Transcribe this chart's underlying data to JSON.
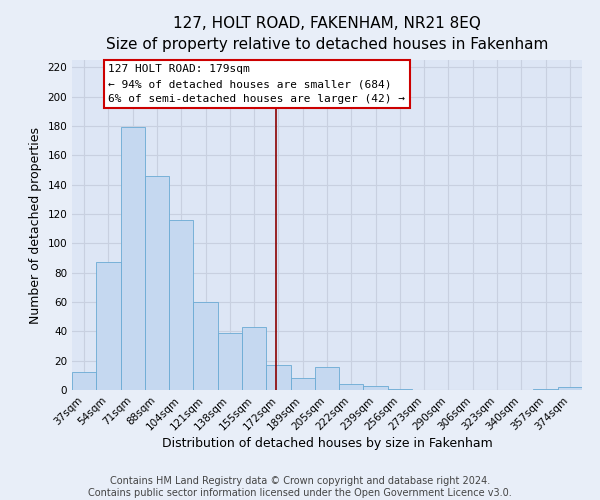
{
  "title": "127, HOLT ROAD, FAKENHAM, NR21 8EQ",
  "subtitle": "Size of property relative to detached houses in Fakenham",
  "xlabel": "Distribution of detached houses by size in Fakenham",
  "ylabel": "Number of detached properties",
  "bar_labels": [
    "37sqm",
    "54sqm",
    "71sqm",
    "88sqm",
    "104sqm",
    "121sqm",
    "138sqm",
    "155sqm",
    "172sqm",
    "189sqm",
    "205sqm",
    "222sqm",
    "239sqm",
    "256sqm",
    "273sqm",
    "290sqm",
    "306sqm",
    "323sqm",
    "340sqm",
    "357sqm",
    "374sqm"
  ],
  "bar_heights": [
    12,
    87,
    179,
    146,
    116,
    60,
    39,
    43,
    17,
    8,
    16,
    4,
    3,
    1,
    0,
    0,
    0,
    0,
    0,
    1,
    2
  ],
  "bar_color": "#c5d8f0",
  "bar_edge_color": "#6aaad4",
  "ylim": [
    0,
    225
  ],
  "yticks": [
    0,
    20,
    40,
    60,
    80,
    100,
    120,
    140,
    160,
    180,
    200,
    220
  ],
  "vline_color": "#8b0000",
  "annotation_title": "127 HOLT ROAD: 179sqm",
  "annotation_line1": "← 94% of detached houses are smaller (684)",
  "annotation_line2": "6% of semi-detached houses are larger (42) →",
  "annotation_box_color": "#cc0000",
  "footer_line1": "Contains HM Land Registry data © Crown copyright and database right 2024.",
  "footer_line2": "Contains public sector information licensed under the Open Government Licence v3.0.",
  "background_color": "#e8eef8",
  "plot_bg_color": "#dde6f5",
  "grid_color": "#c8d0e0",
  "title_fontsize": 11,
  "subtitle_fontsize": 9.5,
  "axis_label_fontsize": 9,
  "tick_fontsize": 7.5,
  "annotation_fontsize": 8,
  "footer_fontsize": 7
}
